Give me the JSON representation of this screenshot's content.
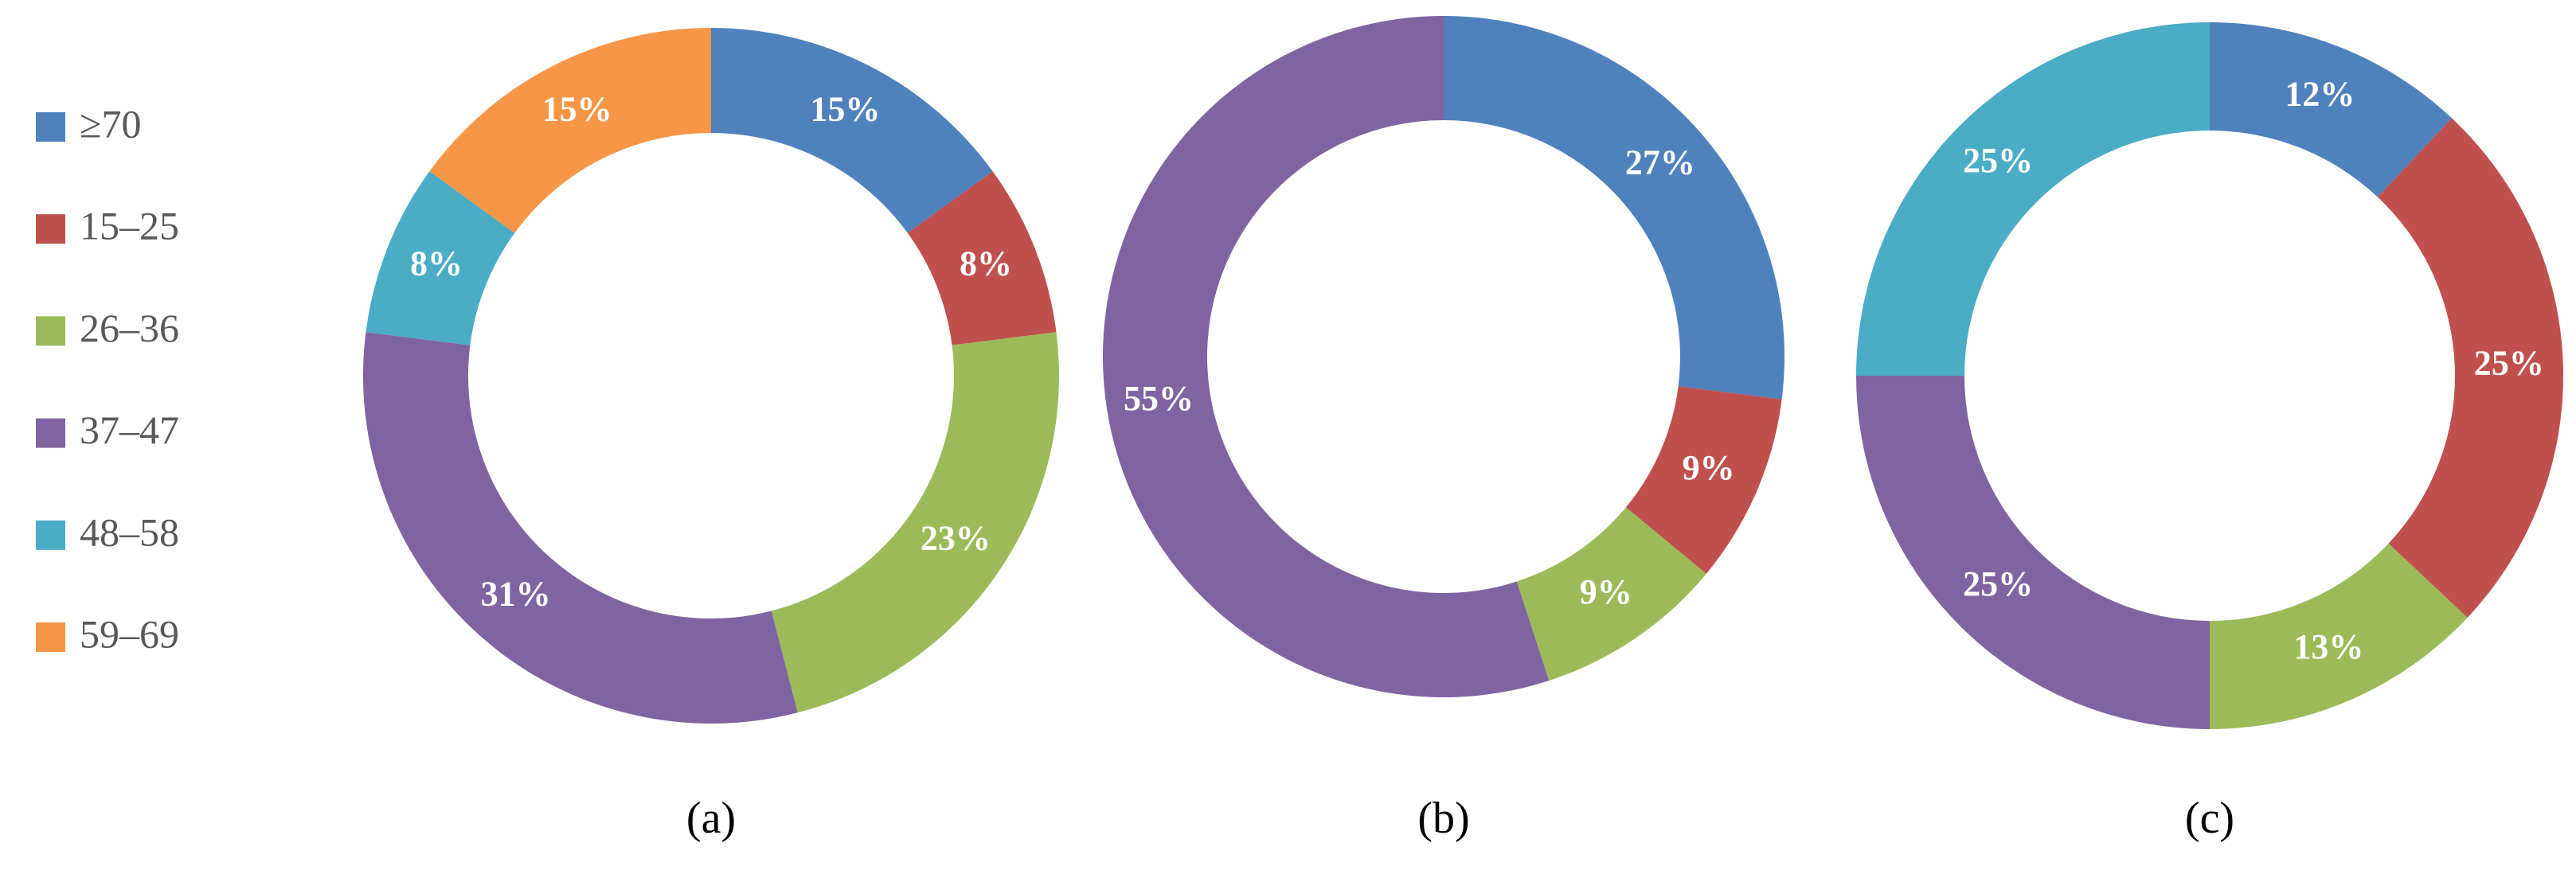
{
  "chart_data": [
    {
      "type": "pie",
      "caption": "(a)",
      "legend": "left",
      "categories": [
        "≥70",
        "15–25",
        "26–36",
        "37–47",
        "48–58",
        "59–69"
      ],
      "colors": [
        "#4f81bd",
        "#c0504d",
        "#9bbb59",
        "#8064a2",
        "#4bacc6",
        "#f79646"
      ],
      "values": [
        15,
        8,
        23,
        31,
        8,
        15
      ],
      "value_labels": [
        "15%",
        "8%",
        "23%",
        "31%",
        "8%",
        "15%"
      ]
    },
    {
      "type": "pie",
      "caption": "(b)",
      "categories": [
        "≥70",
        "15–25",
        "26–36",
        "37–47",
        "48–58",
        "59–69"
      ],
      "colors": [
        "#4f81bd",
        "#c0504d",
        "#9bbb59",
        "#8064a2",
        "#4bacc6",
        "#f79646"
      ],
      "values": [
        27,
        9,
        9,
        55,
        null,
        null
      ],
      "value_labels": [
        "27%",
        "9%",
        "9%",
        "55%",
        null,
        null
      ]
    },
    {
      "type": "pie",
      "caption": "(c)",
      "categories": [
        "≥70",
        "15–25",
        "26–36",
        "37–47",
        "48–58",
        "59–69"
      ],
      "colors": [
        "#4f81bd",
        "#c0504d",
        "#9bbb59",
        "#8064a2",
        "#4bacc6",
        "#f79646"
      ],
      "values": [
        12,
        25,
        13,
        25,
        25,
        null
      ],
      "value_labels": [
        "12%",
        "25%",
        "13%",
        "25%",
        "25%",
        null
      ]
    }
  ]
}
